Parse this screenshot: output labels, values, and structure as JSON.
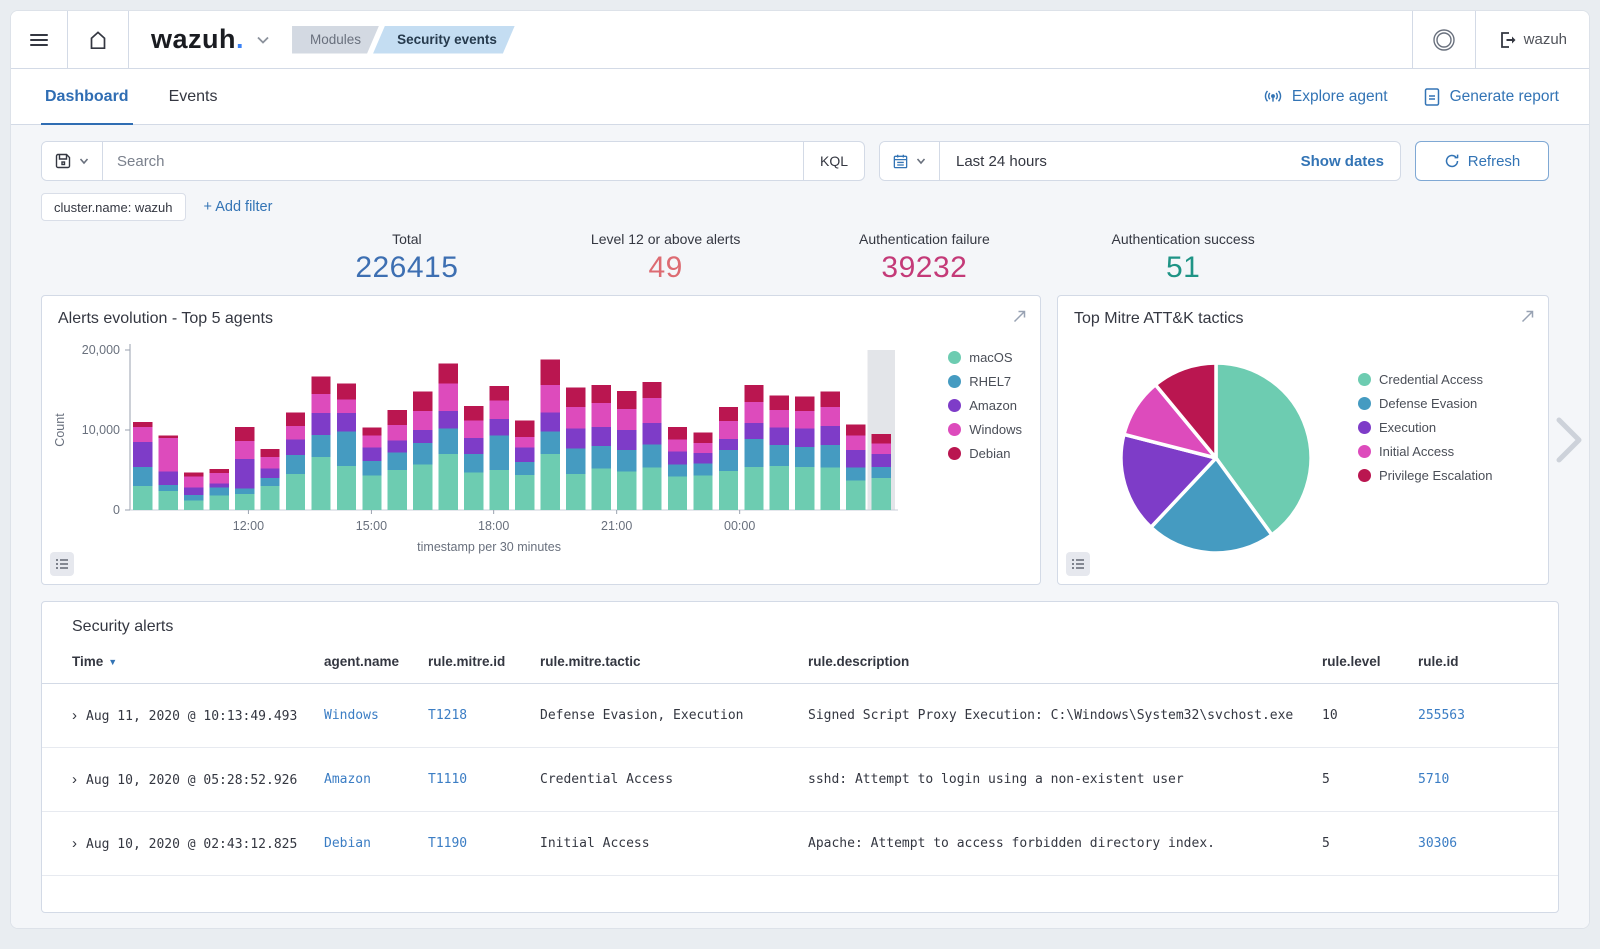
{
  "header": {
    "logo_text": "wazuh",
    "logo_dot": ".",
    "breadcrumbs": [
      "Modules",
      "Security events"
    ],
    "user": "wazuh"
  },
  "tabs": [
    {
      "label": "Dashboard",
      "active": true
    },
    {
      "label": "Events",
      "active": false
    }
  ],
  "actions": {
    "explore_agent": "Explore agent",
    "generate_report": "Generate report"
  },
  "toolbar": {
    "search_placeholder": "Search",
    "kql_label": "KQL",
    "time_range": "Last 24 hours",
    "show_dates_label": "Show dates",
    "refresh_label": "Refresh"
  },
  "filters": {
    "chip": "cluster.name: wazuh",
    "add_filter_label": "+ Add filter"
  },
  "stats": [
    {
      "label": "Total",
      "value": "226415",
      "color": "#3d6fb2"
    },
    {
      "label": "Level 12 or above alerts",
      "value": "49",
      "color": "#dd6b72"
    },
    {
      "label": "Authentication failure",
      "value": "39232",
      "color": "#c43a78"
    },
    {
      "label": "Authentication success",
      "value": "51",
      "color": "#1f9486"
    }
  ],
  "chart_data": [
    {
      "type": "bar",
      "title": "Alerts evolution - Top 5 agents",
      "xlabel": "timestamp per 30 minutes",
      "ylabel": "Count",
      "ylim": [
        0,
        20000
      ],
      "yticks": [
        {
          "label": "0",
          "value": 0
        },
        {
          "label": "10,000",
          "value": 10000
        },
        {
          "label": "20,000",
          "value": 20000
        }
      ],
      "xticks": [
        {
          "label": "12:00",
          "pos": 0.155
        },
        {
          "label": "15:00",
          "pos": 0.316
        },
        {
          "label": "18:00",
          "pos": 0.476
        },
        {
          "label": "21:00",
          "pos": 0.637
        },
        {
          "label": "00:00",
          "pos": 0.798
        }
      ],
      "legend_position": "right",
      "grid": false,
      "highlight_last_bucket": true,
      "series": [
        {
          "name": "macOS",
          "color": "#6dccb1"
        },
        {
          "name": "RHEL7",
          "color": "#459bc1"
        },
        {
          "name": "Amazon",
          "color": "#7e3cc8"
        },
        {
          "name": "Windows",
          "color": "#dd4bbc"
        },
        {
          "name": "Debian",
          "color": "#ba1650"
        }
      ],
      "bars": [
        [
          3000,
          2400,
          3100,
          1900,
          600
        ],
        [
          2400,
          700,
          1700,
          4200,
          300
        ],
        [
          1200,
          700,
          900,
          1400,
          500
        ],
        [
          1800,
          1000,
          500,
          1300,
          500
        ],
        [
          2000,
          700,
          3700,
          2200,
          1800
        ],
        [
          3000,
          1000,
          1200,
          1400,
          1000
        ],
        [
          4500,
          2400,
          1900,
          1700,
          1700
        ],
        [
          6600,
          2800,
          2700,
          2400,
          2200
        ],
        [
          5500,
          4300,
          2300,
          1700,
          2000
        ],
        [
          4300,
          1800,
          1700,
          1500,
          1000
        ],
        [
          5000,
          2200,
          1500,
          1900,
          1900
        ],
        [
          5700,
          2700,
          1600,
          2400,
          2400
        ],
        [
          7000,
          3200,
          2200,
          3400,
          2500
        ],
        [
          4700,
          2300,
          2000,
          2200,
          1800
        ],
        [
          5000,
          4300,
          2100,
          2300,
          1800
        ],
        [
          4400,
          1600,
          1800,
          1300,
          2100
        ],
        [
          7000,
          2800,
          2400,
          3400,
          3200
        ],
        [
          4500,
          3200,
          2500,
          2700,
          2400
        ],
        [
          5200,
          2800,
          2400,
          3000,
          2200
        ],
        [
          4800,
          2700,
          2500,
          2600,
          2300
        ],
        [
          5300,
          2900,
          2700,
          3100,
          2000
        ],
        [
          4200,
          1500,
          1600,
          1500,
          1600
        ],
        [
          4300,
          1500,
          1300,
          1300,
          1300
        ],
        [
          4900,
          2600,
          1400,
          2200,
          1800
        ],
        [
          5400,
          3500,
          2000,
          2600,
          2100
        ],
        [
          5500,
          2600,
          2200,
          2200,
          1800
        ],
        [
          5400,
          2500,
          2300,
          2200,
          1800
        ],
        [
          5300,
          2800,
          2400,
          2400,
          1900
        ],
        [
          3700,
          1600,
          2200,
          1800,
          1400
        ],
        [
          4000,
          1400,
          1600,
          1300,
          1200
        ]
      ]
    },
    {
      "type": "pie",
      "title": "Top Mitre ATT&K tactics",
      "legend_position": "right",
      "slices": [
        {
          "label": "Credential Access",
          "value": 40,
          "color": "#6dccb1"
        },
        {
          "label": "Defense Evasion",
          "value": 22,
          "color": "#459bc1"
        },
        {
          "label": "Execution",
          "value": 17,
          "color": "#7e3cc8"
        },
        {
          "label": "Initial Access",
          "value": 10,
          "color": "#dd4bbc"
        },
        {
          "label": "Privilege Escalation",
          "value": 11,
          "color": "#ba1650"
        }
      ]
    }
  ],
  "table": {
    "title": "Security alerts",
    "columns": [
      {
        "label": "Time",
        "sorted": "desc"
      },
      {
        "label": "agent.name"
      },
      {
        "label": "rule.mitre.id"
      },
      {
        "label": "rule.mitre.tactic"
      },
      {
        "label": "rule.description"
      },
      {
        "label": "rule.level"
      },
      {
        "label": "rule.id"
      }
    ],
    "rows": [
      {
        "time": "Aug 11, 2020 @ 10:13:49.493",
        "agent": "Windows",
        "mitre_id": "T1218",
        "tactic": "Defense Evasion, Execution",
        "description": "Signed Script Proxy Execution: C:\\Windows\\System32\\svchost.exe",
        "level": "10",
        "rule_id": "255563"
      },
      {
        "time": "Aug 10, 2020 @ 05:28:52.926",
        "agent": "Amazon",
        "mitre_id": "T1110",
        "tactic": "Credential Access",
        "description": "sshd: Attempt to login using a non-existent user",
        "level": "5",
        "rule_id": "5710"
      },
      {
        "time": "Aug 10, 2020 @ 02:43:12.825",
        "agent": "Debian",
        "mitre_id": "T1190",
        "tactic": "Initial Access",
        "description": "Apache: Attempt to access forbidden directory index.",
        "level": "5",
        "rule_id": "30306"
      }
    ]
  },
  "icons": {
    "menu": "hamburger",
    "home": "house-outline",
    "logo-caret": "chevron-down",
    "health": "double-circle",
    "sign-out": "export-arrow",
    "explore-agent": "antenna-broadcast",
    "generate-report": "document",
    "save-query": "floppy-disk",
    "calendar": "calendar",
    "refresh": "circular-arrow",
    "expand-panel": "diagonal-arrow",
    "legend-toggle": "list-lines",
    "sort-desc": "▾",
    "row-expand": "›",
    "carousel-next": "chevron-right"
  },
  "colors": {
    "link": "#3374b5",
    "border": "#d3dae6",
    "highlight_band": "#e3e5e9",
    "axis_text": "#69707d"
  }
}
